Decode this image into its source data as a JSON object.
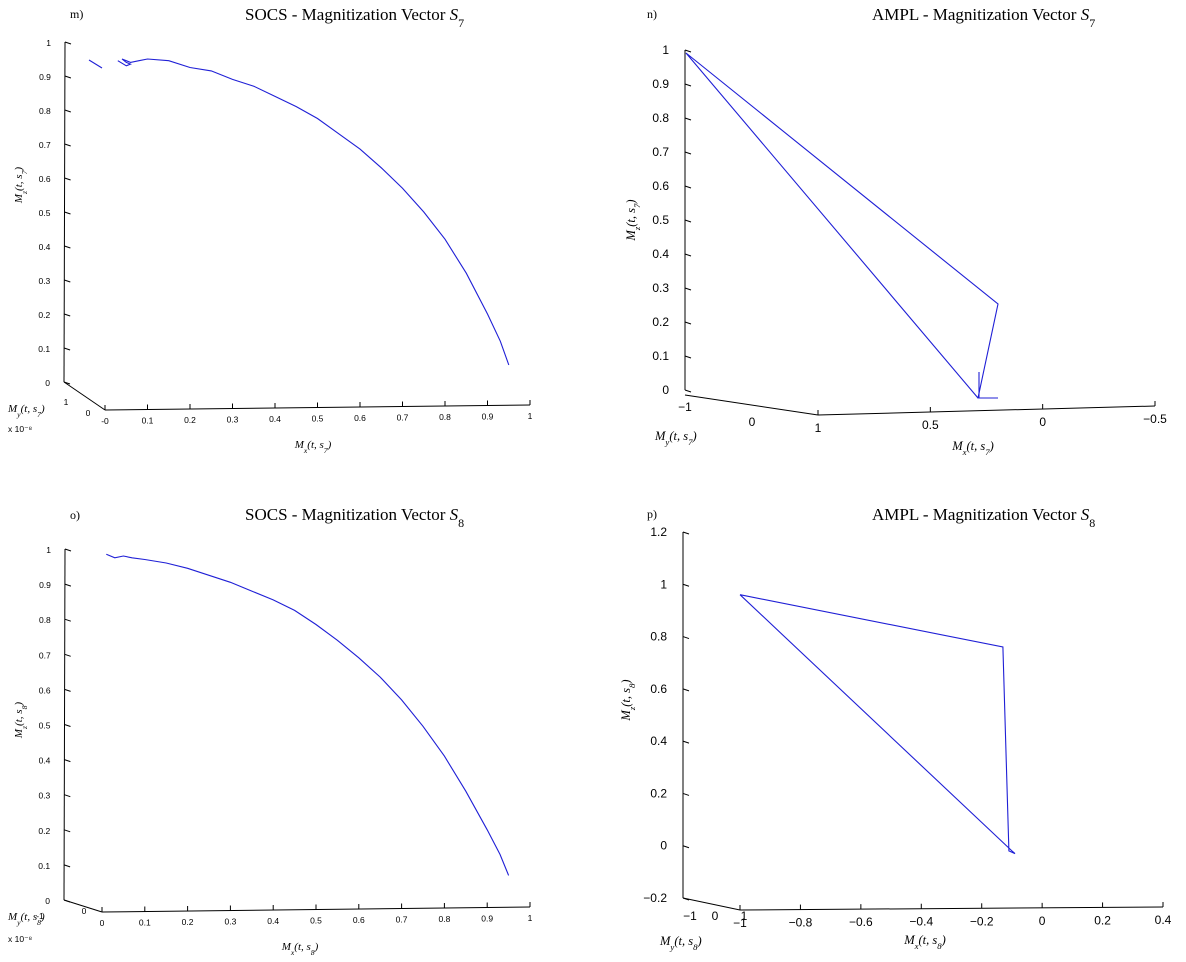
{
  "chart_data": [
    {
      "id": "m",
      "panel_letter": "m)",
      "type": "line",
      "projection": "3d",
      "title_text": "SOCS - Magnitization Vector ",
      "title_symbol": "S",
      "title_subscript": "7",
      "xlabel": "Mx(t, s7)",
      "ylabel": "My(t, s7)",
      "zlabel": "Mz(t, s7)",
      "y_exponent": "x 10⁻⁸",
      "z_ticks": [
        "0",
        "0.1",
        "0.2",
        "0.3",
        "0.4",
        "0.5",
        "0.6",
        "0.7",
        "0.8",
        "0.9",
        "1"
      ],
      "x_ticks": [
        "-0",
        "0.1",
        "0.2",
        "0.3",
        "0.4",
        "0.5",
        "0.6",
        "0.7",
        "0.8",
        "0.9",
        "1"
      ],
      "y_ticks": [
        "1",
        "0"
      ],
      "xlim": [
        0,
        1
      ],
      "zlim": [
        0,
        1
      ],
      "series": [
        {
          "color": "#1f1fd6",
          "x": [
            0.03,
            0.05,
            0.06,
            0.05,
            0.04,
            0.06,
            0.08,
            0.1,
            0.15,
            0.2,
            0.25,
            0.3,
            0.35,
            0.4,
            0.45,
            0.5,
            0.55,
            0.6,
            0.65,
            0.7,
            0.75,
            0.8,
            0.85,
            0.9,
            0.93,
            0.95
          ],
          "z": [
            0.945,
            0.93,
            0.935,
            0.94,
            0.95,
            0.94,
            0.945,
            0.95,
            0.945,
            0.925,
            0.915,
            0.89,
            0.87,
            0.84,
            0.81,
            0.775,
            0.73,
            0.685,
            0.63,
            0.57,
            0.5,
            0.42,
            0.32,
            0.2,
            0.12,
            0.05
          ]
        }
      ]
    },
    {
      "id": "n",
      "panel_letter": "n)",
      "type": "line",
      "projection": "3d",
      "title_text": "AMPL - Magnitization Vector ",
      "title_symbol": "S",
      "title_subscript": "7",
      "xlabel": "Mx(t, s7)",
      "ylabel": "My(t, s7)",
      "zlabel": "Mz(t, s7)",
      "z_ticks": [
        "0",
        "0.1",
        "0.2",
        "0.3",
        "0.4",
        "0.5",
        "0.6",
        "0.7",
        "0.8",
        "0.9",
        "1"
      ],
      "x_ticks": [
        "1",
        "0.5",
        "0",
        "−0.5"
      ],
      "y_ticks": [
        "−1",
        "0"
      ],
      "xlim": [
        1,
        -0.5
      ],
      "zlim": [
        0,
        1
      ],
      "series": [
        {
          "color": "#1f1fd6",
          "x": [
            0.6,
            0.7,
            0.95,
            0.7,
            0.72,
            0.8,
            0.72,
            0.72
          ],
          "z": [
            1.0,
            0.25,
            -0.02,
            0.0,
            0.05,
            0.0,
            0.0,
            1.0
          ]
        }
      ]
    },
    {
      "id": "o",
      "panel_letter": "o)",
      "type": "line",
      "projection": "3d",
      "title_text": "SOCS - Magnitization Vector ",
      "title_symbol": "S",
      "title_subscript": "8",
      "xlabel": "Mx(t, s8)",
      "ylabel": "My(t, s8)",
      "zlabel": "Mz(t, s8)",
      "y_exponent": "x 10⁻⁸",
      "z_ticks": [
        "0",
        "0.1",
        "0.2",
        "0.3",
        "0.4",
        "0.5",
        "0.6",
        "0.7",
        "0.8",
        "0.9",
        "1"
      ],
      "x_ticks": [
        "0",
        "0.1",
        "0.2",
        "0.3",
        "0.4",
        "0.5",
        "0.6",
        "0.7",
        "0.8",
        "0.9",
        "1"
      ],
      "y_ticks": [
        "-1",
        "0"
      ],
      "xlim": [
        0,
        1
      ],
      "zlim": [
        0,
        1
      ],
      "series": [
        {
          "color": "#1f1fd6",
          "x": [
            0.01,
            0.03,
            0.05,
            0.07,
            0.1,
            0.15,
            0.2,
            0.25,
            0.3,
            0.35,
            0.4,
            0.45,
            0.5,
            0.55,
            0.6,
            0.65,
            0.7,
            0.75,
            0.8,
            0.85,
            0.9,
            0.93,
            0.95
          ],
          "z": [
            0.985,
            0.975,
            0.98,
            0.975,
            0.97,
            0.96,
            0.945,
            0.925,
            0.905,
            0.88,
            0.855,
            0.825,
            0.785,
            0.74,
            0.69,
            0.635,
            0.57,
            0.495,
            0.41,
            0.31,
            0.2,
            0.13,
            0.07
          ]
        }
      ]
    },
    {
      "id": "p",
      "panel_letter": "p)",
      "type": "line",
      "projection": "3d",
      "title_text": "AMPL - Magnitization Vector ",
      "title_symbol": "S",
      "title_subscript": "8",
      "xlabel": "Mx(t, s8)",
      "ylabel": "My(t, s8)",
      "zlabel": "Mz(t, s8)",
      "z_ticks": [
        "−0.2",
        "0",
        "0.2",
        "0.4",
        "0.6",
        "0.8",
        "1",
        "1.2"
      ],
      "x_ticks": [
        "−1",
        "−0.8",
        "−0.6",
        "−0.4",
        "−0.2",
        "0",
        "0.2",
        "0.4"
      ],
      "y_ticks": [
        "−1",
        "0",
        "1"
      ],
      "xlim": [
        -1,
        0.4
      ],
      "zlim": [
        -0.2,
        1.2
      ],
      "series": [
        {
          "color": "#1f1fd6",
          "x": [
            -1.0,
            -0.13,
            -0.11,
            -0.09,
            -0.1,
            -1.0
          ],
          "z": [
            0.96,
            0.76,
            -0.02,
            -0.03,
            -0.02,
            0.96
          ]
        }
      ]
    }
  ]
}
